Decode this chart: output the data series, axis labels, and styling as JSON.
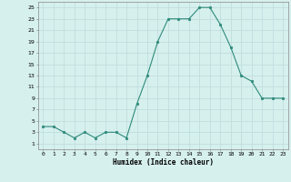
{
  "x": [
    0,
    1,
    2,
    3,
    4,
    5,
    6,
    7,
    8,
    9,
    10,
    11,
    12,
    13,
    14,
    15,
    16,
    17,
    18,
    19,
    20,
    21,
    22,
    23
  ],
  "y": [
    4,
    4,
    3,
    2,
    3,
    2,
    3,
    3,
    2,
    8,
    13,
    19,
    23,
    23,
    23,
    25,
    25,
    22,
    18,
    13,
    12,
    9,
    9,
    9
  ],
  "line_color": "#2e8b7a",
  "marker_color": "#2e8b7a",
  "bg_color": "#d6f0ee",
  "grid_color": "#c0dede",
  "xlabel": "Humidex (Indice chaleur)",
  "xlim": [
    -0.5,
    23.5
  ],
  "ylim": [
    0,
    26
  ],
  "yticks": [
    1,
    3,
    5,
    7,
    9,
    11,
    13,
    15,
    17,
    19,
    21,
    23,
    25
  ],
  "xticks": [
    0,
    1,
    2,
    3,
    4,
    5,
    6,
    7,
    8,
    9,
    10,
    11,
    12,
    13,
    14,
    15,
    16,
    17,
    18,
    19,
    20,
    21,
    22,
    23
  ],
  "xtick_labels": [
    "0",
    "1",
    "2",
    "3",
    "4",
    "5",
    "6",
    "7",
    "8",
    "9",
    "10",
    "11",
    "12",
    "13",
    "14",
    "15",
    "16",
    "17",
    "18",
    "19",
    "20",
    "21",
    "22",
    "23"
  ]
}
